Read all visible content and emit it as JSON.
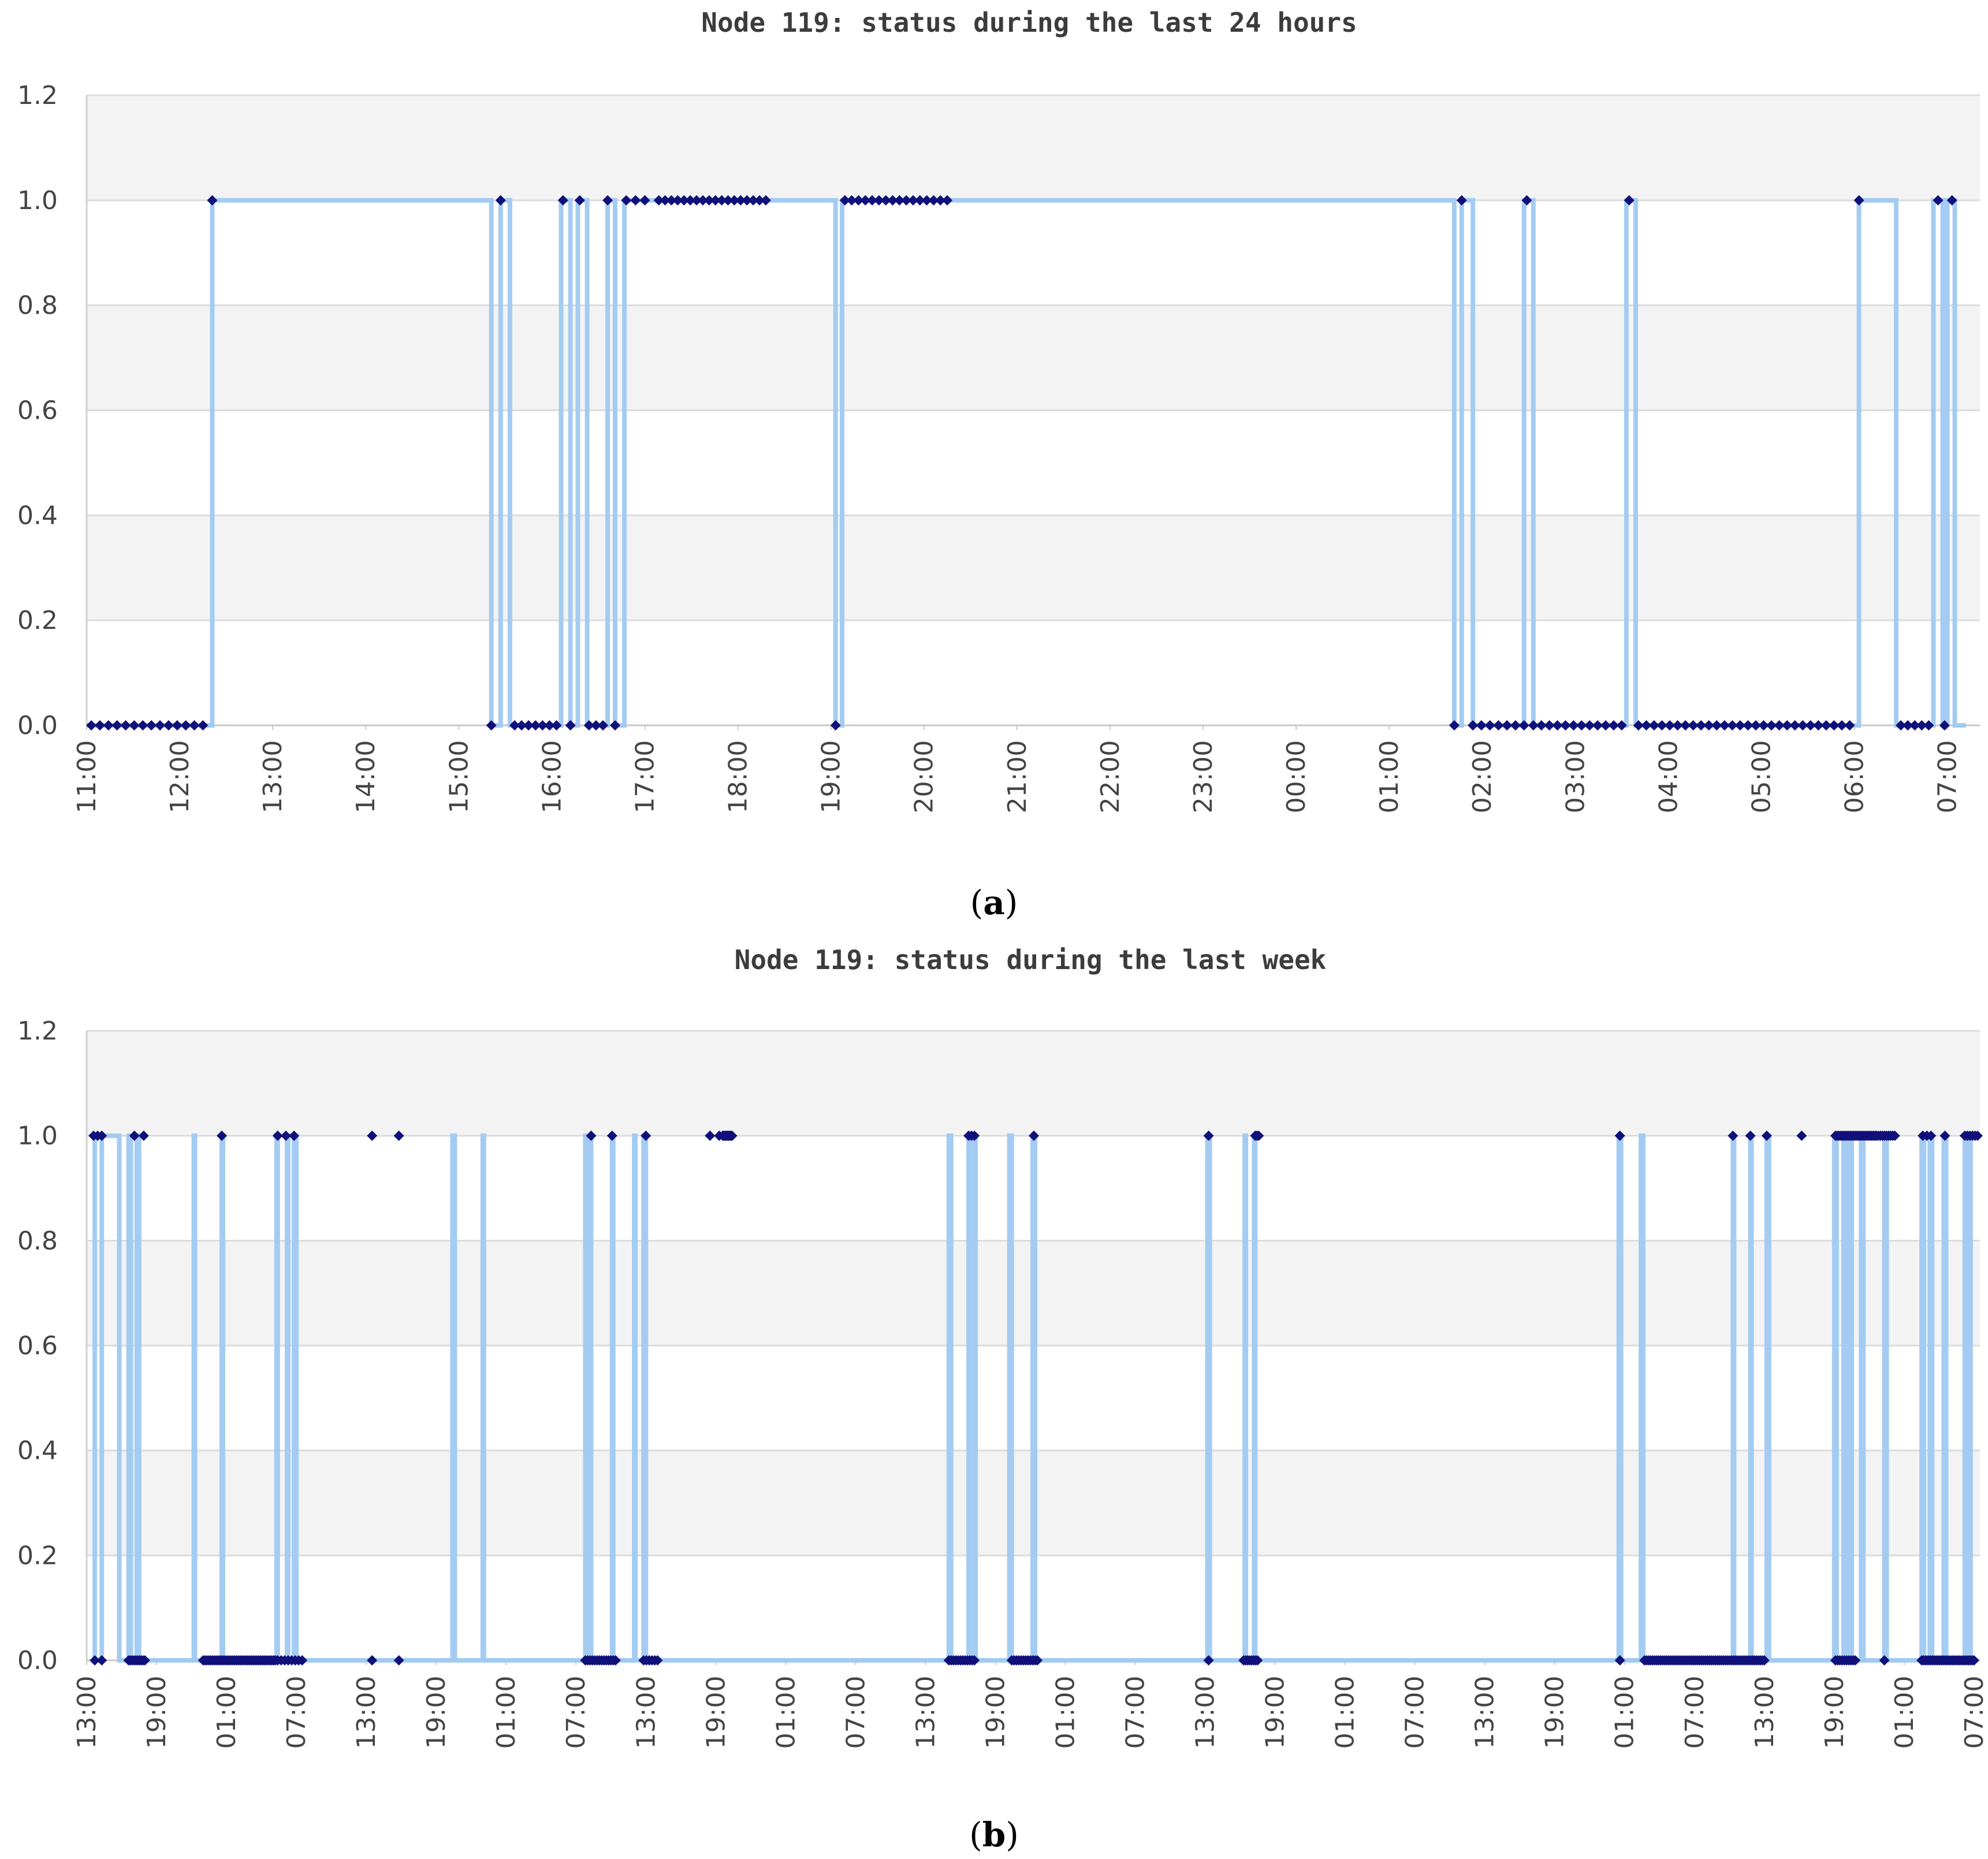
{
  "chart_data": [
    {
      "type": "line",
      "step": true,
      "title": "Node 119: status during the last 24 hours",
      "caption_letter": "a",
      "x_unit": "hours",
      "xlim": [
        11.0,
        31.35
      ],
      "x_tick_labels": [
        "11:00",
        "12:00",
        "13:00",
        "14:00",
        "15:00",
        "16:00",
        "17:00",
        "18:00",
        "19:00",
        "20:00",
        "21:00",
        "22:00",
        "23:00",
        "00:00",
        "01:00",
        "02:00",
        "03:00",
        "04:00",
        "05:00",
        "06:00",
        "07:00"
      ],
      "x_tick_values": [
        11,
        12,
        13,
        14,
        15,
        16,
        17,
        18,
        19,
        20,
        21,
        22,
        23,
        24,
        25,
        26,
        27,
        28,
        29,
        30,
        31
      ],
      "y_tick_labels": [
        "0.0",
        "0.2",
        "0.4",
        "0.6",
        "0.8",
        "1.0",
        "1.2"
      ],
      "ylim": [
        0,
        1.2
      ],
      "grid": true,
      "line_color": "#9fc9f1",
      "marker_color": "#10107a",
      "steps": [
        [
          11.0,
          0
        ],
        [
          12.35,
          1
        ],
        [
          15.35,
          0
        ],
        [
          15.45,
          1
        ],
        [
          15.55,
          0
        ],
        [
          16.1,
          1
        ],
        [
          16.2,
          0
        ],
        [
          16.28,
          1
        ],
        [
          16.38,
          0
        ],
        [
          16.6,
          1
        ],
        [
          16.68,
          0
        ],
        [
          16.78,
          1
        ],
        [
          19.05,
          0
        ],
        [
          19.12,
          1
        ],
        [
          25.7,
          0
        ],
        [
          25.78,
          1
        ],
        [
          25.9,
          0
        ],
        [
          26.45,
          1
        ],
        [
          26.55,
          0
        ],
        [
          27.55,
          1
        ],
        [
          27.65,
          0
        ],
        [
          30.05,
          1
        ],
        [
          30.45,
          0
        ],
        [
          30.85,
          1
        ],
        [
          30.95,
          0
        ],
        [
          31.0,
          1
        ],
        [
          31.08,
          0
        ]
      ],
      "marker_clusters": [
        {
          "y": 0,
          "from": 11.05,
          "to": 12.25,
          "n": 14
        },
        {
          "y": 1,
          "from": 12.35,
          "to": 12.35,
          "n": 1
        },
        {
          "y": 0,
          "from": 15.35,
          "to": 15.35,
          "n": 1
        },
        {
          "y": 1,
          "from": 15.45,
          "to": 15.45,
          "n": 1
        },
        {
          "y": 0,
          "from": 15.6,
          "to": 16.05,
          "n": 7
        },
        {
          "y": 1,
          "from": 16.12,
          "to": 16.12,
          "n": 1
        },
        {
          "y": 0,
          "from": 16.2,
          "to": 16.2,
          "n": 1
        },
        {
          "y": 1,
          "from": 16.3,
          "to": 16.3,
          "n": 1
        },
        {
          "y": 0,
          "from": 16.4,
          "to": 16.55,
          "n": 3
        },
        {
          "y": 1,
          "from": 16.6,
          "to": 16.6,
          "n": 1
        },
        {
          "y": 0,
          "from": 16.68,
          "to": 16.68,
          "n": 1
        },
        {
          "y": 1,
          "from": 16.8,
          "to": 17.0,
          "n": 3
        },
        {
          "y": 1,
          "from": 17.15,
          "to": 18.3,
          "n": 18
        },
        {
          "y": 0,
          "from": 19.05,
          "to": 19.05,
          "n": 1
        },
        {
          "y": 1,
          "from": 19.15,
          "to": 20.25,
          "n": 16
        },
        {
          "y": 0,
          "from": 25.7,
          "to": 25.7,
          "n": 1
        },
        {
          "y": 1,
          "from": 25.78,
          "to": 25.78,
          "n": 1
        },
        {
          "y": 0,
          "from": 25.9,
          "to": 26.45,
          "n": 7
        },
        {
          "y": 1,
          "from": 26.48,
          "to": 26.48,
          "n": 1
        },
        {
          "y": 0,
          "from": 26.55,
          "to": 27.5,
          "n": 12
        },
        {
          "y": 1,
          "from": 27.58,
          "to": 27.58,
          "n": 1
        },
        {
          "y": 0,
          "from": 27.68,
          "to": 29.95,
          "n": 28
        },
        {
          "y": 1,
          "from": 30.05,
          "to": 30.05,
          "n": 1
        },
        {
          "y": 0,
          "from": 30.5,
          "to": 30.8,
          "n": 5
        },
        {
          "y": 1,
          "from": 30.9,
          "to": 31.05,
          "n": 2
        },
        {
          "y": 0,
          "from": 30.97,
          "to": 30.97,
          "n": 1
        }
      ]
    },
    {
      "type": "line",
      "step": true,
      "title": "Node 119: status during the last week",
      "caption_letter": "b",
      "x_unit": "hours",
      "xlim": [
        13.0,
        175.5
      ],
      "x_tick_labels": [
        "13:00",
        "19:00",
        "01:00",
        "07:00",
        "13:00",
        "19:00",
        "01:00",
        "07:00",
        "13:00",
        "19:00",
        "01:00",
        "07:00",
        "13:00",
        "19:00",
        "01:00",
        "07:00",
        "13:00",
        "19:00",
        "01:00",
        "07:00",
        "13:00",
        "19:00",
        "01:00",
        "07:00",
        "13:00",
        "19:00",
        "01:00",
        "07:00"
      ],
      "x_tick_values": [
        13,
        19,
        25,
        31,
        37,
        43,
        49,
        55,
        61,
        67,
        73,
        79,
        85,
        91,
        97,
        103,
        109,
        115,
        121,
        127,
        133,
        139,
        145,
        151,
        157,
        163,
        169,
        175
      ],
      "y_tick_labels": [
        "0.0",
        "0.2",
        "0.4",
        "0.6",
        "0.8",
        "1.0",
        "1.2"
      ],
      "ylim": [
        0,
        1.2
      ],
      "grid": true,
      "line_color": "#9fc9f1",
      "marker_color": "#10107a",
      "steps": [
        [
          13.6,
          1
        ],
        [
          13.7,
          0
        ],
        [
          14.3,
          1
        ],
        [
          15.8,
          0
        ],
        [
          16.6,
          1
        ],
        [
          16.8,
          0
        ],
        [
          17.3,
          1
        ],
        [
          17.5,
          0
        ],
        [
          22.2,
          1
        ],
        [
          22.3,
          0
        ],
        [
          24.6,
          1
        ],
        [
          24.7,
          0
        ],
        [
          29.3,
          1
        ],
        [
          29.4,
          0
        ],
        [
          30.2,
          1
        ],
        [
          30.3,
          0
        ],
        [
          30.8,
          1
        ],
        [
          31.0,
          0
        ],
        [
          44.4,
          1
        ],
        [
          44.6,
          0
        ],
        [
          47.0,
          1
        ],
        [
          47.1,
          0
        ],
        [
          55.8,
          1
        ],
        [
          56.0,
          0
        ],
        [
          56.2,
          1
        ],
        [
          56.3,
          0
        ],
        [
          58.1,
          1
        ],
        [
          58.2,
          0
        ],
        [
          60.0,
          1
        ],
        [
          60.1,
          0
        ],
        [
          60.8,
          1
        ],
        [
          61.0,
          0
        ],
        [
          87.0,
          1
        ],
        [
          87.2,
          0
        ],
        [
          88.7,
          1
        ],
        [
          88.8,
          0
        ],
        [
          89.2,
          1
        ],
        [
          89.3,
          0
        ],
        [
          92.2,
          1
        ],
        [
          92.4,
          0
        ],
        [
          94.2,
          1
        ],
        [
          94.4,
          0
        ],
        [
          109.2,
          1
        ],
        [
          109.4,
          0
        ],
        [
          112.4,
          1
        ],
        [
          112.5,
          0
        ],
        [
          113.2,
          1
        ],
        [
          113.3,
          0
        ],
        [
          144.5,
          1
        ],
        [
          144.7,
          0
        ],
        [
          146.4,
          1
        ],
        [
          146.6,
          0
        ],
        [
          154.3,
          1
        ],
        [
          154.4,
          0
        ],
        [
          155.8,
          1
        ],
        [
          155.9,
          0
        ],
        [
          157.2,
          1
        ],
        [
          157.4,
          0
        ],
        [
          163.0,
          1
        ],
        [
          163.2,
          0
        ],
        [
          163.8,
          1
        ],
        [
          163.9,
          0
        ],
        [
          164.1,
          1
        ],
        [
          164.2,
          0
        ],
        [
          164.3,
          1
        ],
        [
          164.5,
          0
        ],
        [
          165.3,
          1
        ],
        [
          165.5,
          0
        ],
        [
          167.3,
          1
        ],
        [
          167.5,
          0
        ],
        [
          170.5,
          1
        ],
        [
          170.7,
          0
        ],
        [
          171.2,
          1
        ],
        [
          171.4,
          0
        ],
        [
          172.4,
          1
        ],
        [
          172.6,
          0
        ],
        [
          174.2,
          1
        ],
        [
          174.3,
          0
        ],
        [
          174.6,
          1
        ],
        [
          174.7,
          0
        ]
      ],
      "marker_clusters": [
        {
          "y": 1,
          "from": 13.6,
          "to": 14.3,
          "n": 3
        },
        {
          "y": 0,
          "from": 13.7,
          "to": 14.3,
          "n": 2
        },
        {
          "y": 0,
          "from": 16.6,
          "to": 18.0,
          "n": 10
        },
        {
          "y": 1,
          "from": 17.1,
          "to": 17.9,
          "n": 2
        },
        {
          "y": 0,
          "from": 23.0,
          "to": 29.2,
          "n": 40
        },
        {
          "y": 1,
          "from": 24.6,
          "to": 24.6,
          "n": 1
        },
        {
          "y": 0,
          "from": 29.4,
          "to": 31.5,
          "n": 8
        },
        {
          "y": 1,
          "from": 29.4,
          "to": 30.8,
          "n": 3
        },
        {
          "y": 1,
          "from": 37.5,
          "to": 37.5,
          "n": 1
        },
        {
          "y": 0,
          "from": 37.5,
          "to": 37.5,
          "n": 1
        },
        {
          "y": 1,
          "from": 39.8,
          "to": 39.8,
          "n": 1
        },
        {
          "y": 0,
          "from": 39.8,
          "to": 39.8,
          "n": 1
        },
        {
          "y": 0,
          "from": 55.8,
          "to": 58.4,
          "n": 14
        },
        {
          "y": 1,
          "from": 56.3,
          "to": 56.3,
          "n": 1
        },
        {
          "y": 1,
          "from": 58.1,
          "to": 58.1,
          "n": 1
        },
        {
          "y": 0,
          "from": 60.8,
          "to": 62.0,
          "n": 6
        },
        {
          "y": 1,
          "from": 61.0,
          "to": 61.0,
          "n": 1
        },
        {
          "y": 1,
          "from": 66.5,
          "to": 67.3,
          "n": 2
        },
        {
          "y": 1,
          "from": 67.6,
          "to": 68.4,
          "n": 10
        },
        {
          "y": 0,
          "from": 87.0,
          "to": 89.2,
          "n": 12
        },
        {
          "y": 1,
          "from": 88.7,
          "to": 89.2,
          "n": 3
        },
        {
          "y": 0,
          "from": 92.4,
          "to": 94.6,
          "n": 12
        },
        {
          "y": 1,
          "from": 94.3,
          "to": 94.3,
          "n": 1
        },
        {
          "y": 1,
          "from": 109.3,
          "to": 109.3,
          "n": 1
        },
        {
          "y": 0,
          "from": 109.3,
          "to": 109.3,
          "n": 1
        },
        {
          "y": 0,
          "from": 112.3,
          "to": 113.5,
          "n": 8
        },
        {
          "y": 1,
          "from": 113.3,
          "to": 113.6,
          "n": 3
        },
        {
          "y": 1,
          "from": 144.6,
          "to": 144.6,
          "n": 1
        },
        {
          "y": 0,
          "from": 144.6,
          "to": 144.6,
          "n": 1
        },
        {
          "y": 0,
          "from": 146.7,
          "to": 157.0,
          "n": 60
        },
        {
          "y": 1,
          "from": 154.3,
          "to": 154.3,
          "n": 1
        },
        {
          "y": 1,
          "from": 155.8,
          "to": 155.8,
          "n": 1
        },
        {
          "y": 1,
          "from": 157.2,
          "to": 157.2,
          "n": 1
        },
        {
          "y": 1,
          "from": 160.2,
          "to": 160.2,
          "n": 1
        },
        {
          "y": 0,
          "from": 163.1,
          "to": 164.8,
          "n": 10
        },
        {
          "y": 1,
          "from": 163.1,
          "to": 166.5,
          "n": 25
        },
        {
          "y": 1,
          "from": 166.6,
          "to": 168.2,
          "n": 10
        },
        {
          "y": 0,
          "from": 167.3,
          "to": 167.3,
          "n": 1
        },
        {
          "y": 0,
          "from": 170.5,
          "to": 175.0,
          "n": 30
        },
        {
          "y": 1,
          "from": 170.6,
          "to": 171.3,
          "n": 3
        },
        {
          "y": 1,
          "from": 172.5,
          "to": 172.5,
          "n": 1
        },
        {
          "y": 1,
          "from": 174.2,
          "to": 175.3,
          "n": 6
        }
      ]
    }
  ]
}
